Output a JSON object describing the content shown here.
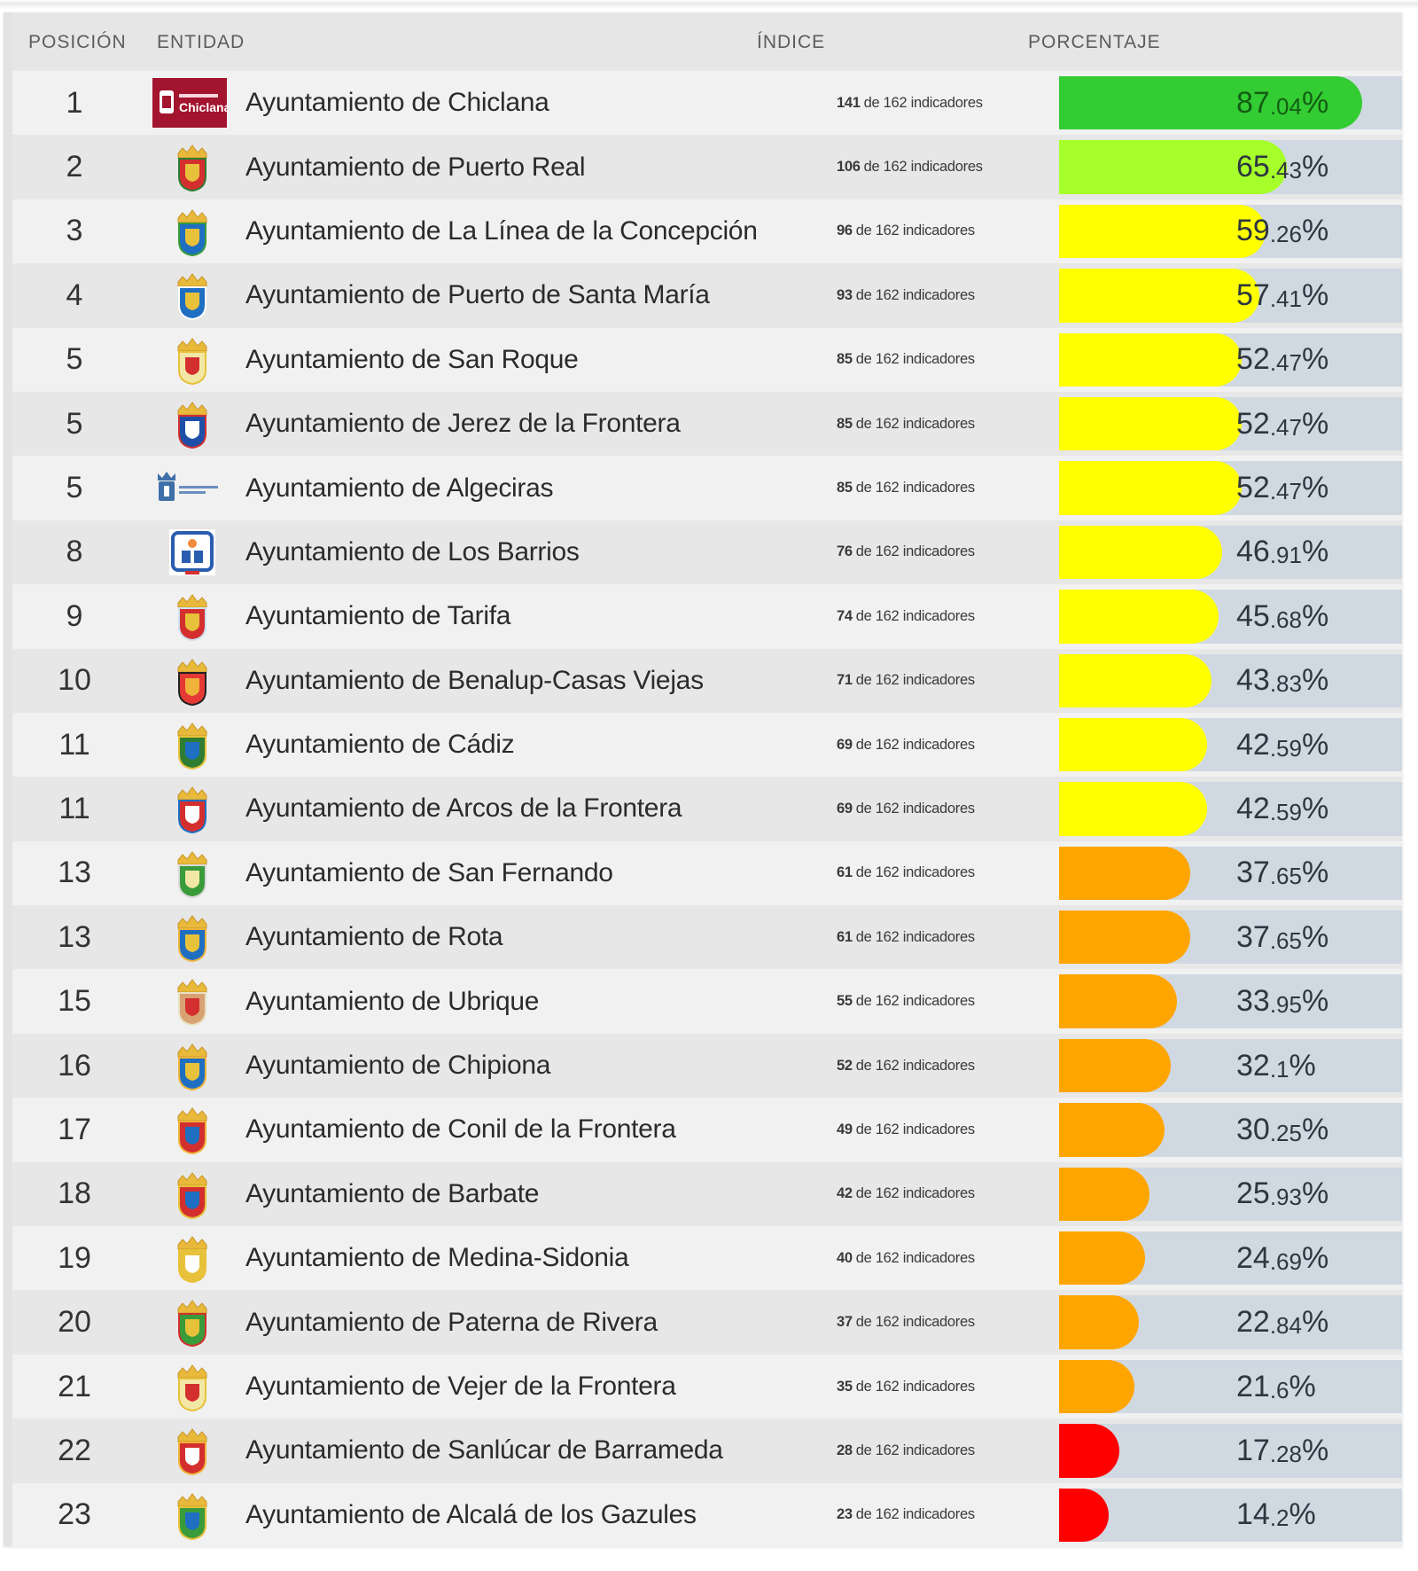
{
  "header": {
    "position": "POSICIÓN",
    "entity": "ENTIDAD",
    "index": "ÍNDICE",
    "percentage": "PORCENTAJE"
  },
  "colors": {
    "green": "#33cc33",
    "lime": "#a6ff2a",
    "yellow": "#ffff00",
    "orange": "#ffa500",
    "red": "#ff0000",
    "track": "#d0d9e2"
  },
  "rows": [
    {
      "position": "1",
      "logo": "chiclana-logo",
      "entity": "Ayuntamiento de Chiclana",
      "count": "141",
      "index_suffix": "de 162 indicadores",
      "pct_int": "87",
      "pct_dec": ".04",
      "pct": 87.04,
      "color": "#33cc33"
    },
    {
      "position": "2",
      "logo": "puerto-real-shield",
      "entity": "Ayuntamiento de Puerto Real",
      "count": "106",
      "index_suffix": "de 162 indicadores",
      "pct_int": "65",
      "pct_dec": ".43",
      "pct": 65.43,
      "color": "#a6ff2a"
    },
    {
      "position": "3",
      "logo": "la-linea-shield",
      "entity": "Ayuntamiento de La Línea de la Concepción",
      "count": "96",
      "index_suffix": "de 162 indicadores",
      "pct_int": "59",
      "pct_dec": ".26",
      "pct": 59.26,
      "color": "#ffff00"
    },
    {
      "position": "4",
      "logo": "puerto-santa-maria-shield",
      "entity": "Ayuntamiento de Puerto de Santa María",
      "count": "93",
      "index_suffix": "de 162 indicadores",
      "pct_int": "57",
      "pct_dec": ".41",
      "pct": 57.41,
      "color": "#ffff00"
    },
    {
      "position": "5",
      "logo": "san-roque-shield",
      "entity": "Ayuntamiento de San Roque",
      "count": "85",
      "index_suffix": "de 162 indicadores",
      "pct_int": "52",
      "pct_dec": ".47",
      "pct": 52.47,
      "color": "#ffff00"
    },
    {
      "position": "5",
      "logo": "jerez-shield",
      "entity": "Ayuntamiento de Jerez de la Frontera",
      "count": "85",
      "index_suffix": "de 162 indicadores",
      "pct_int": "52",
      "pct_dec": ".47",
      "pct": 52.47,
      "color": "#ffff00"
    },
    {
      "position": "5",
      "logo": "algeciras-logo",
      "entity": "Ayuntamiento de Algeciras",
      "count": "85",
      "index_suffix": "de 162 indicadores",
      "pct_int": "52",
      "pct_dec": ".47",
      "pct": 52.47,
      "color": "#ffff00"
    },
    {
      "position": "8",
      "logo": "los-barrios-logo",
      "entity": "Ayuntamiento de Los Barrios",
      "count": "76",
      "index_suffix": "de 162 indicadores",
      "pct_int": "46",
      "pct_dec": ".91",
      "pct": 46.91,
      "color": "#ffff00"
    },
    {
      "position": "9",
      "logo": "tarifa-shield",
      "entity": "Ayuntamiento de Tarifa",
      "count": "74",
      "index_suffix": "de 162 indicadores",
      "pct_int": "45",
      "pct_dec": ".68",
      "pct": 45.68,
      "color": "#ffff00"
    },
    {
      "position": "10",
      "logo": "benalup-shield",
      "entity": "Ayuntamiento de Benalup-Casas Viejas",
      "count": "71",
      "index_suffix": "de 162 indicadores",
      "pct_int": "43",
      "pct_dec": ".83",
      "pct": 43.83,
      "color": "#ffff00"
    },
    {
      "position": "11",
      "logo": "cadiz-shield",
      "entity": "Ayuntamiento de Cádiz",
      "count": "69",
      "index_suffix": "de 162 indicadores",
      "pct_int": "42",
      "pct_dec": ".59",
      "pct": 42.59,
      "color": "#ffff00"
    },
    {
      "position": "11",
      "logo": "arcos-shield",
      "entity": "Ayuntamiento de Arcos de la Frontera",
      "count": "69",
      "index_suffix": "de 162 indicadores",
      "pct_int": "42",
      "pct_dec": ".59",
      "pct": 42.59,
      "color": "#ffff00"
    },
    {
      "position": "13",
      "logo": "san-fernando-shield",
      "entity": "Ayuntamiento de San Fernando",
      "count": "61",
      "index_suffix": "de 162 indicadores",
      "pct_int": "37",
      "pct_dec": ".65",
      "pct": 37.65,
      "color": "#ffa500"
    },
    {
      "position": "13",
      "logo": "rota-shield",
      "entity": "Ayuntamiento de Rota",
      "count": "61",
      "index_suffix": "de 162 indicadores",
      "pct_int": "37",
      "pct_dec": ".65",
      "pct": 37.65,
      "color": "#ffa500"
    },
    {
      "position": "15",
      "logo": "ubrique-shield",
      "entity": "Ayuntamiento de Ubrique",
      "count": "55",
      "index_suffix": "de 162 indicadores",
      "pct_int": "33",
      "pct_dec": ".95",
      "pct": 33.95,
      "color": "#ffa500"
    },
    {
      "position": "16",
      "logo": "chipiona-shield",
      "entity": "Ayuntamiento de Chipiona",
      "count": "52",
      "index_suffix": "de 162 indicadores",
      "pct_int": "32",
      "pct_dec": ".1",
      "pct": 32.1,
      "color": "#ffa500"
    },
    {
      "position": "17",
      "logo": "conil-shield",
      "entity": "Ayuntamiento de Conil de la Frontera",
      "count": "49",
      "index_suffix": "de 162 indicadores",
      "pct_int": "30",
      "pct_dec": ".25",
      "pct": 30.25,
      "color": "#ffa500"
    },
    {
      "position": "18",
      "logo": "barbate-shield",
      "entity": "Ayuntamiento de Barbate",
      "count": "42",
      "index_suffix": "de 162 indicadores",
      "pct_int": "25",
      "pct_dec": ".93",
      "pct": 25.93,
      "color": "#ffa500"
    },
    {
      "position": "19",
      "logo": "medina-sidonia-shield",
      "entity": "Ayuntamiento de Medina-Sidonia",
      "count": "40",
      "index_suffix": "de 162 indicadores",
      "pct_int": "24",
      "pct_dec": ".69",
      "pct": 24.69,
      "color": "#ffa500"
    },
    {
      "position": "20",
      "logo": "paterna-shield",
      "entity": "Ayuntamiento de Paterna de Rivera",
      "count": "37",
      "index_suffix": "de 162 indicadores",
      "pct_int": "22",
      "pct_dec": ".84",
      "pct": 22.84,
      "color": "#ffa500"
    },
    {
      "position": "21",
      "logo": "vejer-shield",
      "entity": "Ayuntamiento de Vejer de la Frontera",
      "count": "35",
      "index_suffix": "de 162 indicadores",
      "pct_int": "21",
      "pct_dec": ".6",
      "pct": 21.6,
      "color": "#ffa500"
    },
    {
      "position": "22",
      "logo": "sanlucar-shield",
      "entity": "Ayuntamiento de Sanlúcar de Barrameda",
      "count": "28",
      "index_suffix": "de 162 indicadores",
      "pct_int": "17",
      "pct_dec": ".28",
      "pct": 17.28,
      "color": "#ff0000"
    },
    {
      "position": "23",
      "logo": "alcala-gazules-shield",
      "entity": "Ayuntamiento de Alcalá de los Gazules",
      "count": "23",
      "index_suffix": "de 162 indicadores",
      "pct_int": "14",
      "pct_dec": ".2",
      "pct": 14.2,
      "color": "#ff0000"
    }
  ],
  "chart_data": {
    "type": "bar",
    "title": "",
    "xlabel": "PORCENTAJE",
    "ylabel": "ENTIDAD",
    "ylim": [
      0,
      100
    ],
    "categories": [
      "Ayuntamiento de Chiclana",
      "Ayuntamiento de Puerto Real",
      "Ayuntamiento de La Línea de la Concepción",
      "Ayuntamiento de Puerto de Santa María",
      "Ayuntamiento de San Roque",
      "Ayuntamiento de Jerez de la Frontera",
      "Ayuntamiento de Algeciras",
      "Ayuntamiento de Los Barrios",
      "Ayuntamiento de Tarifa",
      "Ayuntamiento de Benalup-Casas Viejas",
      "Ayuntamiento de Cádiz",
      "Ayuntamiento de Arcos de la Frontera",
      "Ayuntamiento de San Fernando",
      "Ayuntamiento de Rota",
      "Ayuntamiento de Ubrique",
      "Ayuntamiento de Chipiona",
      "Ayuntamiento de Conil de la Frontera",
      "Ayuntamiento de Barbate",
      "Ayuntamiento de Medina-Sidonia",
      "Ayuntamiento de Paterna de Rivera",
      "Ayuntamiento de Vejer de la Frontera",
      "Ayuntamiento de Sanlúcar de Barrameda",
      "Ayuntamiento de Alcalá de los Gazules"
    ],
    "values": [
      87.04,
      65.43,
      59.26,
      57.41,
      52.47,
      52.47,
      52.47,
      46.91,
      45.68,
      43.83,
      42.59,
      42.59,
      37.65,
      37.65,
      33.95,
      32.1,
      30.25,
      25.93,
      24.69,
      22.84,
      21.6,
      17.28,
      14.2
    ],
    "indicators_met": [
      141,
      106,
      96,
      93,
      85,
      85,
      85,
      76,
      74,
      71,
      69,
      69,
      61,
      61,
      55,
      52,
      49,
      42,
      40,
      37,
      35,
      28,
      23
    ],
    "indicators_total": 162
  }
}
